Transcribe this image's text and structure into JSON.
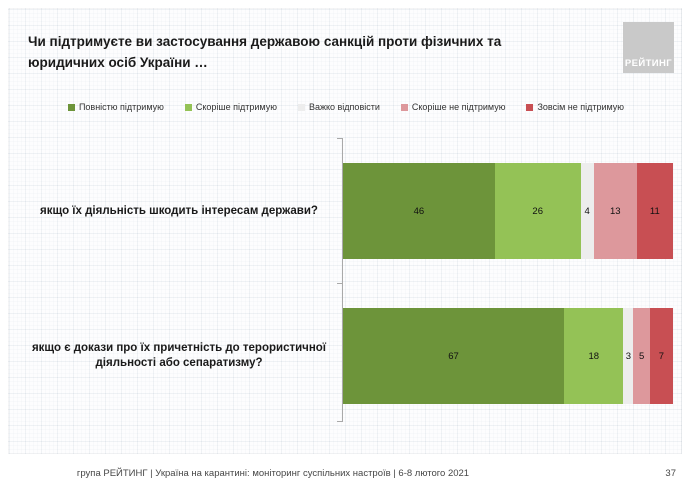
{
  "slide": {
    "title_lines": [
      "Чи підтримуєте ви застосування державою санкцій проти фізичних та",
      "юридичних осіб України …"
    ],
    "logo_text": "РЕЙТИНГ",
    "footer": "група РЕЙТИНГ | Україна на карантині: моніторинг суспільних настроїв | 6-8 лютого 2021",
    "page_number": "37"
  },
  "colors": {
    "fully_support": "#6d943a",
    "rather_support": "#94c256",
    "hard_to_answer": "#ededed",
    "rather_not_support": "#dd989c",
    "not_support_at_all": "#c84f53",
    "logo_background": "#c9c9c9",
    "axis": "#a9a9a9"
  },
  "chart_data": {
    "type": "bar",
    "orientation": "horizontal",
    "stacked": true,
    "title": "Чи підтримуєте ви застосування державою санкцій проти фізичних та юридичних осіб України …",
    "categories": [
      "якщо їх діяльність шкодить інтересам держави?",
      "якщо є докази про їх причетність до терористичної діяльності або сепаратизму?"
    ],
    "series": [
      {
        "name": "Повністю підтримую",
        "color": "#6d943a",
        "values": [
          46,
          67
        ]
      },
      {
        "name": "Скоріше підтримую",
        "color": "#94c256",
        "values": [
          26,
          18
        ]
      },
      {
        "name": "Важко відповісти",
        "color": "#ededed",
        "values": [
          4,
          3
        ]
      },
      {
        "name": "Скоріше не підтримую",
        "color": "#dd989c",
        "values": [
          13,
          5
        ]
      },
      {
        "name": "Зовсім не підтримую",
        "color": "#c84f53",
        "values": [
          11,
          7
        ]
      }
    ],
    "xlim": [
      0,
      100
    ],
    "legend_position": "top",
    "value_labels": true,
    "grid": false
  }
}
